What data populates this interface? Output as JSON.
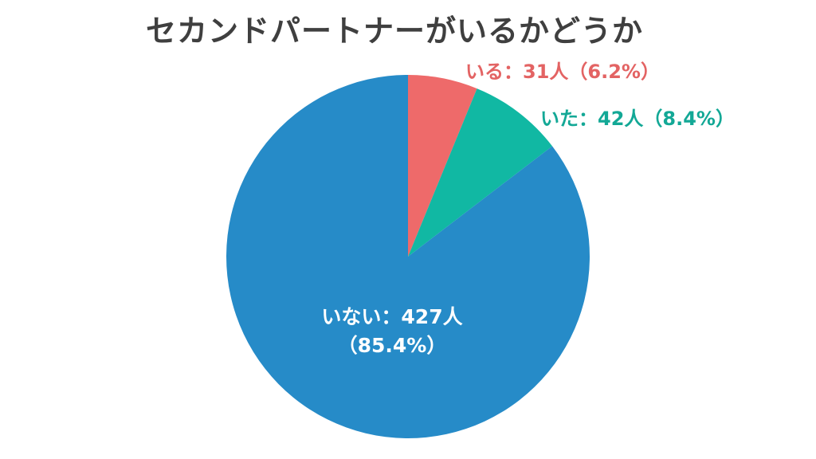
{
  "title": "セカンドパートナーがいるかどうか",
  "chart_data": {
    "type": "pie",
    "title": "セカンドパートナーがいるかどうか",
    "start": "12 o'clock, clockwise",
    "slices": [
      {
        "name": "いる",
        "count": 31,
        "value": 6.2,
        "color": "#EE6A6A",
        "label_line1": "いる：31人（6.2%）",
        "label_line2": "",
        "label_color": "#E36363",
        "label_placement": "outside-top-right"
      },
      {
        "name": "いた",
        "count": 42,
        "value": 8.4,
        "color": "#11B8A3",
        "label_line1": "いた：42人（8.4%）",
        "label_line2": "",
        "label_color": "#13A896",
        "label_placement": "outside-right"
      },
      {
        "name": "いない",
        "count": 427,
        "value": 85.4,
        "color": "#268BC8",
        "label_line1": "いない：427人",
        "label_line2": "（85.4%）",
        "label_color": "#FFFFFF",
        "label_placement": "inside"
      }
    ]
  }
}
